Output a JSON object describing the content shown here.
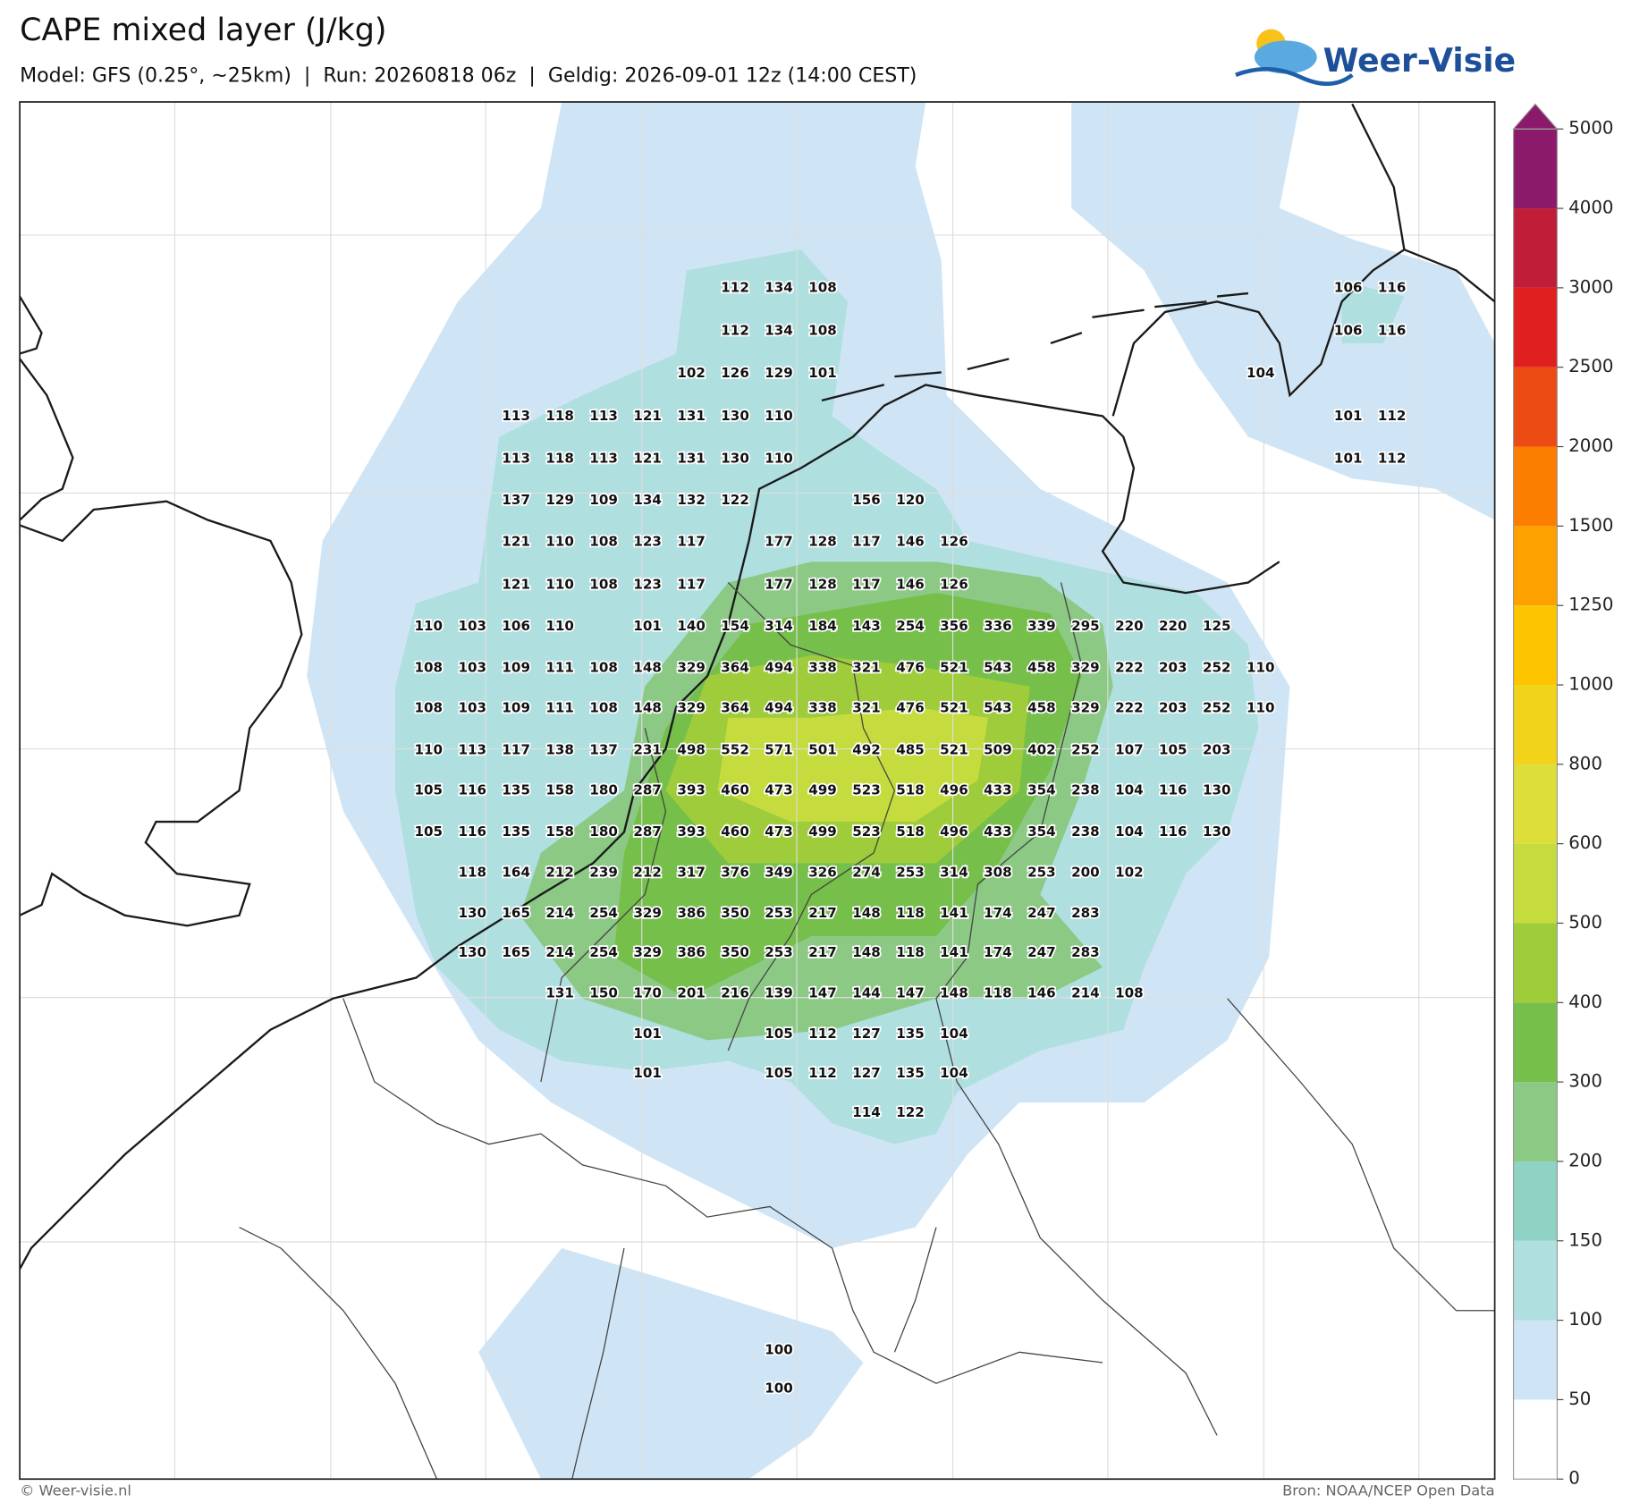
{
  "header": {
    "title": "CAPE mixed layer (J/kg)",
    "subtitle": "Model: GFS (0.25°, ~25km)  |  Run: 20260818 06z  |  Geldig: 2026-09-01 12z (14:00 CEST)",
    "logo": "Weer-Visie"
  },
  "map_labels": [
    [
      null,
      null,
      null,
      null,
      null,
      null,
      null,
      112,
      134,
      108,
      null,
      null,
      null,
      null,
      null,
      null,
      null,
      null,
      null,
      null,
      null,
      106,
      116
    ],
    [
      null,
      null,
      null,
      null,
      null,
      null,
      null,
      112,
      134,
      108,
      null,
      null,
      null,
      null,
      null,
      null,
      null,
      null,
      null,
      null,
      null,
      106,
      116
    ],
    [
      null,
      null,
      null,
      null,
      null,
      null,
      102,
      126,
      129,
      101,
      null,
      null,
      null,
      null,
      null,
      null,
      null,
      null,
      null,
      104,
      null,
      null,
      null
    ],
    [
      null,
      null,
      113,
      118,
      113,
      121,
      131,
      130,
      110,
      null,
      null,
      null,
      null,
      null,
      null,
      null,
      null,
      null,
      null,
      null,
      null,
      101,
      112
    ],
    [
      null,
      null,
      113,
      118,
      113,
      121,
      131,
      130,
      110,
      null,
      null,
      null,
      null,
      null,
      null,
      null,
      null,
      null,
      null,
      null,
      null,
      101,
      112
    ],
    [
      null,
      null,
      137,
      129,
      109,
      134,
      132,
      122,
      null,
      null,
      156,
      120,
      null,
      null,
      null,
      null,
      null,
      null,
      null,
      null,
      null,
      null,
      null
    ],
    [
      null,
      null,
      121,
      110,
      108,
      123,
      117,
      null,
      177,
      128,
      117,
      146,
      126,
      null,
      null,
      null,
      null,
      null,
      null,
      null,
      null,
      null,
      null
    ],
    [
      null,
      null,
      121,
      110,
      108,
      123,
      117,
      null,
      177,
      128,
      117,
      146,
      126,
      null,
      null,
      null,
      null,
      null,
      null,
      null,
      null,
      null,
      null
    ],
    [
      110,
      103,
      106,
      110,
      null,
      101,
      140,
      154,
      314,
      184,
      143,
      254,
      356,
      336,
      339,
      295,
      220,
      220,
      125,
      null,
      null,
      null,
      null
    ],
    [
      108,
      103,
      109,
      111,
      108,
      148,
      329,
      364,
      494,
      338,
      321,
      476,
      521,
      543,
      458,
      329,
      222,
      203,
      252,
      110,
      null,
      null,
      null
    ],
    [
      108,
      103,
      109,
      111,
      108,
      148,
      329,
      364,
      494,
      338,
      321,
      476,
      521,
      543,
      458,
      329,
      222,
      203,
      252,
      110,
      null,
      null,
      null
    ],
    [
      110,
      113,
      117,
      138,
      137,
      231,
      498,
      552,
      571,
      501,
      492,
      485,
      521,
      509,
      402,
      252,
      107,
      105,
      203,
      null,
      null,
      null,
      null
    ],
    [
      105,
      116,
      135,
      158,
      180,
      287,
      393,
      460,
      473,
      499,
      523,
      518,
      496,
      433,
      354,
      238,
      104,
      116,
      130,
      null,
      null,
      null,
      null
    ],
    [
      105,
      116,
      135,
      158,
      180,
      287,
      393,
      460,
      473,
      499,
      523,
      518,
      496,
      433,
      354,
      238,
      104,
      116,
      130,
      null,
      null,
      null,
      null
    ],
    [
      null,
      118,
      164,
      212,
      239,
      212,
      317,
      376,
      349,
      326,
      274,
      253,
      314,
      308,
      253,
      200,
      102,
      null,
      null,
      null,
      null,
      null,
      null
    ],
    [
      null,
      130,
      165,
      214,
      254,
      329,
      386,
      350,
      253,
      217,
      148,
      118,
      141,
      174,
      247,
      283,
      null,
      null,
      null,
      null,
      null,
      null,
      null
    ],
    [
      null,
      130,
      165,
      214,
      254,
      329,
      386,
      350,
      253,
      217,
      148,
      118,
      141,
      174,
      247,
      283,
      null,
      null,
      null,
      null,
      null,
      null,
      null
    ],
    [
      null,
      null,
      null,
      131,
      150,
      170,
      201,
      216,
      139,
      147,
      144,
      147,
      148,
      118,
      146,
      214,
      108,
      null,
      null,
      null,
      null,
      null,
      null
    ],
    [
      null,
      null,
      null,
      null,
      null,
      101,
      null,
      null,
      105,
      112,
      127,
      135,
      104,
      null,
      null,
      null,
      null,
      null,
      null,
      null,
      null,
      null,
      null
    ],
    [
      null,
      null,
      null,
      null,
      null,
      101,
      null,
      null,
      105,
      112,
      127,
      135,
      104,
      null,
      null,
      null,
      null,
      null,
      null,
      null,
      null,
      null,
      null
    ],
    [
      null,
      null,
      null,
      null,
      null,
      null,
      null,
      null,
      null,
      null,
      114,
      122,
      null,
      null,
      null,
      null,
      null,
      null,
      null,
      null,
      null,
      null,
      null
    ],
    [
      null,
      null,
      null,
      null,
      null,
      null,
      null,
      null,
      100,
      null,
      null,
      null,
      null,
      null,
      null,
      null,
      null,
      null,
      null,
      null,
      null,
      null,
      null
    ],
    [
      null,
      null,
      null,
      null,
      null,
      null,
      null,
      null,
      100,
      null,
      null,
      null,
      null,
      null,
      null,
      null,
      null,
      null,
      null,
      null,
      null,
      null,
      null
    ]
  ],
  "colorbar": {
    "levels": [
      0,
      50,
      100,
      150,
      200,
      300,
      400,
      500,
      600,
      800,
      1000,
      1250,
      1500,
      2000,
      2500,
      3000,
      4000,
      5000
    ],
    "colors": [
      "#ffffff",
      "#cfe5f5",
      "#b0dfe0",
      "#8fd3c4",
      "#8cc985",
      "#76bf4b",
      "#9fcc3b",
      "#c6dc3e",
      "#dede3a",
      "#f0d31a",
      "#fcc500",
      "#fca100",
      "#fb7e00",
      "#ec4b13",
      "#e01f1f",
      "#c01e38",
      "#8c1a6a"
    ]
  },
  "footer": {
    "credit": "© Weer-visie.nl",
    "source": "Bron: NOAA/NCEP Open Data"
  }
}
